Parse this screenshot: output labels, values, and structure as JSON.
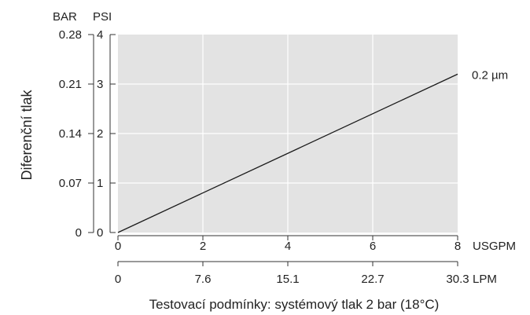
{
  "chart_data": {
    "type": "line",
    "ylabel": "Diferenční tlak",
    "y_units": {
      "left": "BAR",
      "right": "PSI"
    },
    "y_ticks_bar": [
      "0",
      "0.07",
      "0.14",
      "0.21",
      "0.28"
    ],
    "y_ticks_psi": [
      "0",
      "1",
      "2",
      "3",
      "4"
    ],
    "ylim_psi": [
      0,
      4
    ],
    "x_units": {
      "primary": "USGPM",
      "secondary": "LPM"
    },
    "x_ticks_usgpm": [
      "0",
      "2",
      "4",
      "6",
      "8"
    ],
    "x_ticks_lpm": [
      "0",
      "7.6",
      "15.1",
      "22.7",
      "30.3"
    ],
    "xlim_usgpm": [
      0,
      8
    ],
    "grid": true,
    "series": [
      {
        "name": "0.2 µm",
        "x": [
          0,
          8
        ],
        "y": [
          0,
          3.2
        ]
      }
    ],
    "caption": "Testovací podmínky: systémový tlak 2 bar (18°C)"
  },
  "colors": {
    "plot_background": "#e3e3e3",
    "gridline": "#ffffff",
    "line": "#1a1a1a",
    "axis": "#333333"
  }
}
